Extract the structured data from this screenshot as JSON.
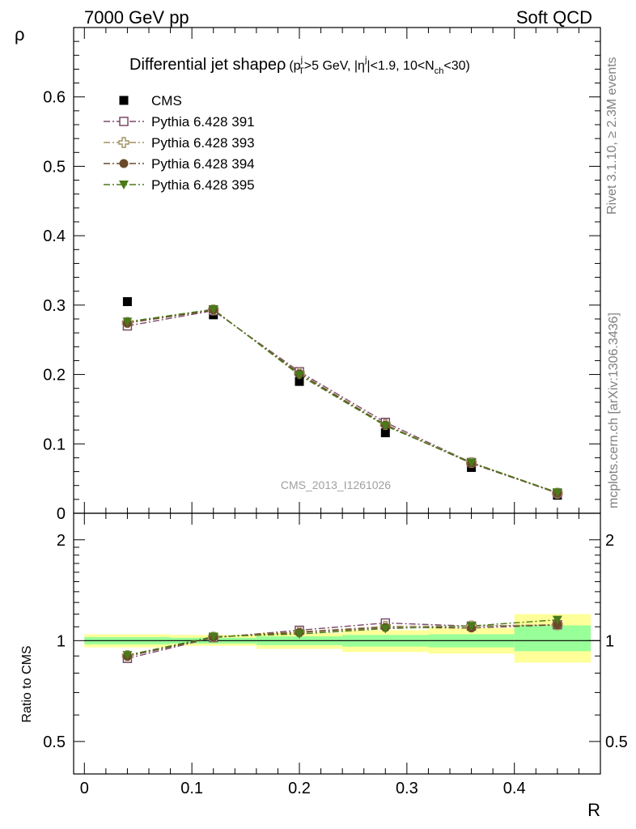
{
  "header": {
    "left": "7000 GeV pp",
    "right": "Soft QCD"
  },
  "side_labels": {
    "rivet": "Rivet 3.1.10, ≥ 2.3M events",
    "mcplots": "mcplots.cern.ch [arXiv:1306.3436]"
  },
  "chart_data": [
    {
      "type": "scatter",
      "panel": "main",
      "title": {
        "main": "Differential jet shapeρ",
        "cond_1": "(p",
        "cond_1_sup": "j",
        "cond_1_sub": "T",
        "cond_2": ">5 GeV, |η",
        "cond_2_sup": "j",
        "cond_3": "|<1.9, 10<N",
        "cond_3_sub": "ch",
        "cond_4": "<30)"
      },
      "ylabel": "ρ",
      "xlabel": "R",
      "watermark": "CMS_2013_I1261026",
      "xlim": [
        -0.01,
        0.48
      ],
      "ylim": [
        0,
        0.7
      ],
      "yticks": [
        0,
        0.1,
        0.2,
        0.3,
        0.4,
        0.5,
        0.6
      ],
      "ytick_labels": [
        "0",
        "0.1",
        "0.2",
        "0.3",
        "0.4",
        "0.5",
        "0.6"
      ],
      "legend_position": "top-left",
      "x": [
        0.04,
        0.12,
        0.2,
        0.28,
        0.36,
        0.44
      ],
      "series": [
        {
          "name": "CMS",
          "color": "#000000",
          "marker": "filled-square",
          "line": "none",
          "values": [
            0.305,
            0.286,
            0.19,
            0.116,
            0.066,
            0.026
          ]
        },
        {
          "name": "Pythia 6.428 391",
          "color": "#7a4a6a",
          "marker": "open-square",
          "line": "dash-dot",
          "values": [
            0.27,
            0.292,
            0.204,
            0.131,
            0.073,
            0.029
          ]
        },
        {
          "name": "Pythia 6.428 393",
          "color": "#a09060",
          "marker": "open-cross",
          "line": "dash-dot",
          "values": [
            0.275,
            0.293,
            0.202,
            0.128,
            0.073,
            0.029
          ]
        },
        {
          "name": "Pythia 6.428 394",
          "color": "#6a4a2a",
          "marker": "filled-circle",
          "line": "dash-dot",
          "values": [
            0.274,
            0.293,
            0.201,
            0.127,
            0.072,
            0.029
          ]
        },
        {
          "name": "Pythia 6.428 395",
          "color": "#4a7a1a",
          "marker": "filled-triangle-down",
          "line": "dash-dot",
          "values": [
            0.276,
            0.294,
            0.199,
            0.126,
            0.073,
            0.03
          ]
        }
      ]
    },
    {
      "type": "scatter",
      "panel": "ratio",
      "ylabel": "Ratio to CMS",
      "xlabel": "R",
      "xlim": [
        -0.01,
        0.48
      ],
      "ylim": [
        0.4,
        2.4
      ],
      "scale": "log",
      "yticks": [
        0.5,
        1,
        2
      ],
      "ytick_labels": [
        "0.5",
        "1",
        "2"
      ],
      "xticks": [
        0,
        0.1,
        0.2,
        0.3,
        0.4
      ],
      "xtick_labels": [
        "0",
        "0.1",
        "0.2",
        "0.3",
        "0.4"
      ],
      "x": [
        0.04,
        0.12,
        0.2,
        0.28,
        0.36,
        0.44
      ],
      "bin_edges": [
        0,
        0.08,
        0.16,
        0.24,
        0.32,
        0.4,
        0.48
      ],
      "band_yellow": [
        [
          0.955,
          1.045
        ],
        [
          0.965,
          1.04
        ],
        [
          0.945,
          1.055
        ],
        [
          0.925,
          1.075
        ],
        [
          0.915,
          1.09
        ],
        [
          0.86,
          1.2
        ]
      ],
      "band_green": [
        [
          0.975,
          1.025
        ],
        [
          0.98,
          1.02
        ],
        [
          0.97,
          1.03
        ],
        [
          0.96,
          1.04
        ],
        [
          0.955,
          1.045
        ],
        [
          0.93,
          1.11
        ]
      ],
      "series": [
        {
          "name": "Pythia 6.428 391",
          "color": "#7a4a6a",
          "values": [
            0.885,
            1.021,
            1.074,
            1.129,
            1.105,
            1.115
          ]
        },
        {
          "name": "Pythia 6.428 393",
          "color": "#a09060",
          "values": [
            0.902,
            1.024,
            1.063,
            1.103,
            1.106,
            1.115
          ]
        },
        {
          "name": "Pythia 6.428 394",
          "color": "#6a4a2a",
          "values": [
            0.898,
            1.024,
            1.058,
            1.095,
            1.091,
            1.115
          ]
        },
        {
          "name": "Pythia 6.428 395",
          "color": "#4a7a1a",
          "values": [
            0.905,
            1.028,
            1.047,
            1.086,
            1.106,
            1.154
          ]
        }
      ]
    }
  ]
}
